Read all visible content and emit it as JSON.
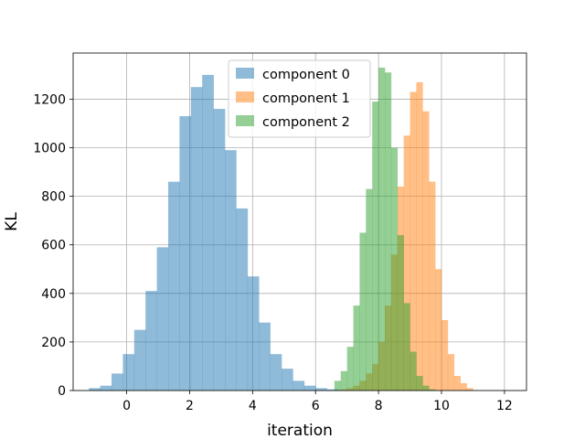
{
  "chart_data": {
    "type": "histogram",
    "xlabel": "iteration",
    "ylabel": "KL",
    "xlim": [
      -1.7,
      12.7
    ],
    "ylim": [
      0,
      1390
    ],
    "xticks": [
      0,
      2,
      4,
      6,
      8,
      10,
      12
    ],
    "yticks": [
      0,
      200,
      400,
      600,
      800,
      1000,
      1200
    ],
    "grid": true,
    "legend_position": "top-center",
    "series": [
      {
        "name": "component 0",
        "color": "#1f77b4",
        "bin_start": -1.2,
        "bin_width": 0.36,
        "counts": [
          10,
          20,
          70,
          150,
          250,
          410,
          590,
          860,
          1130,
          1250,
          1300,
          1160,
          990,
          750,
          470,
          280,
          150,
          90,
          40,
          20,
          10,
          5
        ]
      },
      {
        "name": "component 1",
        "color": "#ff7f0e",
        "bin_start": 6.6,
        "bin_width": 0.2,
        "counts": [
          2,
          5,
          10,
          20,
          40,
          70,
          110,
          200,
          350,
          560,
          840,
          1050,
          1230,
          1270,
          1150,
          860,
          500,
          290,
          150,
          60,
          30,
          10
        ]
      },
      {
        "name": "component 2",
        "color": "#2ca02c",
        "bin_start": 6.6,
        "bin_width": 0.2,
        "counts": [
          40,
          80,
          180,
          350,
          650,
          830,
          1190,
          1330,
          1310,
          1000,
          640,
          360,
          160,
          60,
          20,
          5
        ]
      }
    ],
    "opacity": 0.5
  }
}
